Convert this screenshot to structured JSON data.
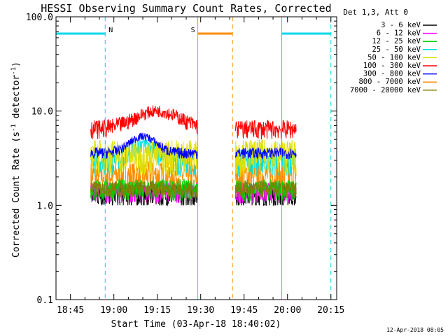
{
  "chart_data": {
    "type": "line",
    "title": "HESSI Observing Summary Count Rates, Corrected",
    "xlabel": "Start Time (03-Apr-18 18:40:02)",
    "ylabel": "Corrected Count Rate (s",
    "ylabel_sup": "-1",
    "ylabel_mid": " detector",
    "ylabel_sup2": "-1",
    "ylabel_end": ")",
    "yscale": "log",
    "ylim": [
      0.1,
      100.0
    ],
    "xlim": [
      "18:40",
      "20:17"
    ],
    "x_ticks": [
      "18:45",
      "19:00",
      "19:15",
      "19:30",
      "19:45",
      "20:00",
      "20:15"
    ],
    "y_ticks": [
      "0.1",
      "1.0",
      "10.0",
      "100.0"
    ],
    "legend_title": "Det 1,3, Att 0",
    "legend_position": "top-right",
    "series": [
      {
        "name": "3 - 6 keV",
        "color": "#000000",
        "level": 1.3,
        "spread": 0.35
      },
      {
        "name": "6 - 12 keV",
        "color": "#ff00ff",
        "level": 1.4,
        "spread": 0.35
      },
      {
        "name": "12 - 25 keV",
        "color": "#00d000",
        "level": 1.5,
        "spread": 0.4
      },
      {
        "name": "25 - 50 keV",
        "color": "#00e0e0",
        "level": 3.0,
        "spread": 1.0
      },
      {
        "name": "50 - 100 keV",
        "color": "#e0e000",
        "level": 3.5,
        "spread": 1.5
      },
      {
        "name": "100 - 300 keV",
        "color": "#ff0000",
        "level": 6.5,
        "spread": 1.5
      },
      {
        "name": "300 - 800 keV",
        "color": "#0000ff",
        "level": 3.6,
        "spread": 0.5
      },
      {
        "name": "800 - 7000 keV",
        "color": "#ff8c00",
        "level": 2.1,
        "spread": 0.8
      },
      {
        "name": "7000 - 20000 keV",
        "color": "#808000",
        "level": 1.5,
        "spread": 0.3
      }
    ],
    "data_intervals": [
      [
        "18:52",
        "19:29"
      ],
      [
        "19:42",
        "20:03"
      ]
    ],
    "annotations": [
      {
        "label": "N",
        "color": "#00d8e8",
        "line_at": [
          "18:40",
          "19:00"
        ],
        "bar": [
          "18:40",
          "18:57"
        ],
        "dashed_at": "18:57"
      },
      {
        "label": "S",
        "color": "#ff8c00",
        "line_at": [
          "19:29",
          "19:41"
        ],
        "bar": [
          "19:29",
          "19:41"
        ],
        "dashed_at": "19:41"
      },
      {
        "label": "",
        "color": "#00d8e8",
        "line_at": [
          "19:58",
          "20:15"
        ],
        "bar": [
          "19:58",
          "20:15"
        ],
        "dashed_at": "20:15"
      }
    ]
  },
  "footer": {
    "timestamp": "12-Apr-2018 08:05"
  }
}
